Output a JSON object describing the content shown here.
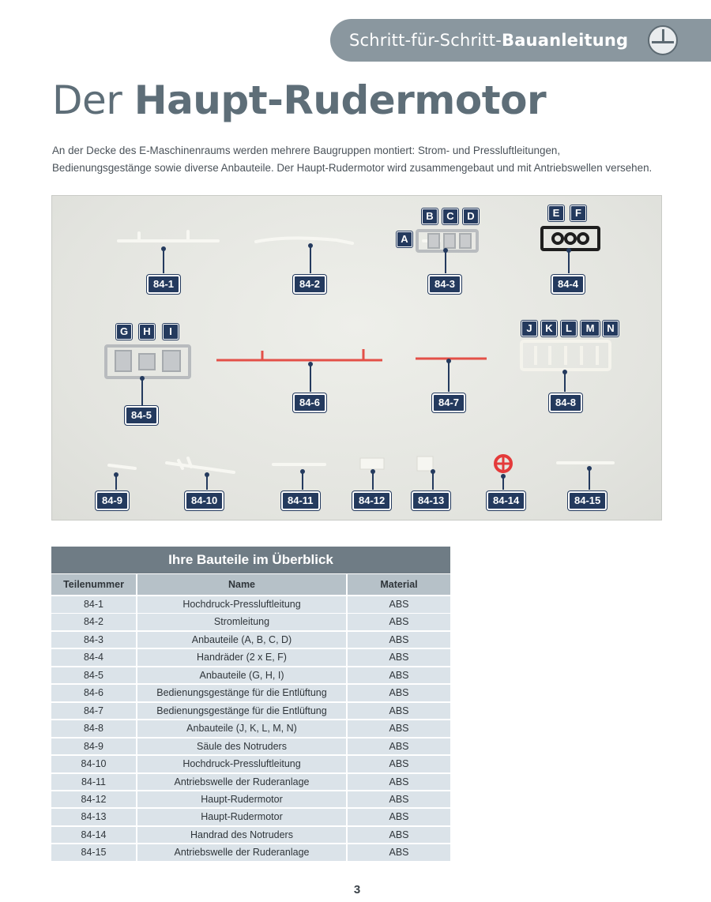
{
  "header": {
    "banner_normal": "Schritt-für-Schritt-",
    "banner_bold": "Bauanleitung"
  },
  "title": {
    "normal": "Der ",
    "bold": "Haupt-Rudermotor"
  },
  "intro": "An der Decke des E-Maschinenraums werden mehrere Baugruppen montiert: Strom- und Pressluftleitungen, Bedienungsgestänge sowie diverse Anbauteile. Der Haupt-Rudermotor wird zusammengebaut und mit Antriebswellen versehen.",
  "photo": {
    "labels": [
      "84-1",
      "84-2",
      "84-3",
      "84-4",
      "84-5",
      "84-6",
      "84-7",
      "84-8",
      "84-9",
      "84-10",
      "84-11",
      "84-12",
      "84-13",
      "84-14",
      "84-15"
    ],
    "letters": [
      "A",
      "B",
      "C",
      "D",
      "E",
      "F",
      "G",
      "H",
      "I",
      "J",
      "K",
      "L",
      "M",
      "N"
    ]
  },
  "table": {
    "title": "Ihre Bauteile im Überblick",
    "headers": [
      "Teilenummer",
      "Name",
      "Material"
    ],
    "rows": [
      [
        "84-1",
        "Hochdruck-Pressluftleitung",
        "ABS"
      ],
      [
        "84-2",
        "Stromleitung",
        "ABS"
      ],
      [
        "84-3",
        "Anbauteile (A, B, C, D)",
        "ABS"
      ],
      [
        "84-4",
        "Handräder (2 x E, F)",
        "ABS"
      ],
      [
        "84-5",
        "Anbauteile (G, H, I)",
        "ABS"
      ],
      [
        "84-6",
        "Bedienungsgestänge für die Entlüftung",
        "ABS"
      ],
      [
        "84-7",
        "Bedienungsgestänge für die Entlüftung",
        "ABS"
      ],
      [
        "84-8",
        "Anbauteile (J, K, L, M, N)",
        "ABS"
      ],
      [
        "84-9",
        "Säule des Notruders",
        "ABS"
      ],
      [
        "84-10",
        "Hochdruck-Pressluftleitung",
        "ABS"
      ],
      [
        "84-11",
        "Antriebswelle der Ruderanlage",
        "ABS"
      ],
      [
        "84-12",
        "Haupt-Rudermotor",
        "ABS"
      ],
      [
        "84-13",
        "Haupt-Rudermotor",
        "ABS"
      ],
      [
        "84-14",
        "Handrad des Notruders",
        "ABS"
      ],
      [
        "84-15",
        "Antriebswelle der Ruderanlage",
        "ABS"
      ]
    ]
  },
  "page_number": "3"
}
